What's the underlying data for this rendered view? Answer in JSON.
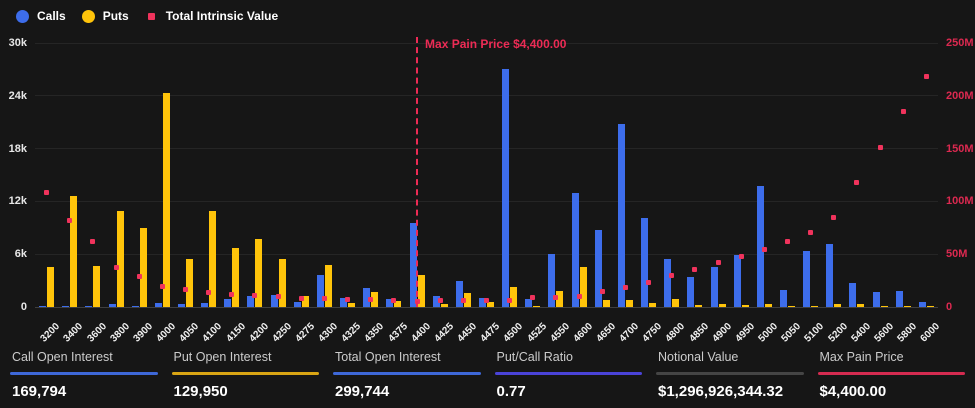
{
  "legend": [
    {
      "label": "Calls",
      "shape": "circle",
      "color": "#3D6DEB"
    },
    {
      "label": "Puts",
      "shape": "circle",
      "color": "#FFC40A"
    },
    {
      "label": "Total Intrinsic Value",
      "shape": "square",
      "color": "#F0335C"
    }
  ],
  "chart_data": {
    "type": "bar",
    "categories": [
      "3200",
      "3400",
      "3600",
      "3800",
      "3900",
      "4000",
      "4050",
      "4100",
      "4150",
      "4200",
      "4250",
      "4275",
      "4300",
      "4325",
      "4350",
      "4375",
      "4400",
      "4425",
      "4450",
      "4475",
      "4500",
      "4525",
      "4550",
      "4600",
      "4650",
      "4700",
      "4750",
      "4800",
      "4850",
      "4900",
      "4950",
      "5000",
      "5050",
      "5100",
      "5200",
      "5400",
      "5600",
      "5800",
      "6000"
    ],
    "series": [
      {
        "name": "Calls",
        "type": "bar",
        "axis": "left",
        "color": "#3D6DEB",
        "values": [
          60,
          100,
          100,
          300,
          150,
          500,
          300,
          400,
          900,
          1200,
          1400,
          600,
          3600,
          1000,
          2200,
          900,
          9500,
          1200,
          3000,
          1000,
          27000,
          900,
          6000,
          12900,
          8800,
          20800,
          10100,
          5500,
          3400,
          4500,
          5900,
          13800,
          1900,
          6400,
          7200,
          2700,
          1700,
          1800,
          600
        ]
      },
      {
        "name": "Puts",
        "type": "bar",
        "axis": "left",
        "color": "#FFC40A",
        "values": [
          4500,
          12600,
          4700,
          10900,
          9000,
          24300,
          5400,
          10900,
          6700,
          7700,
          5400,
          1200,
          4800,
          400,
          1700,
          700,
          3600,
          300,
          1600,
          600,
          2300,
          150,
          1850,
          4600,
          800,
          800,
          400,
          900,
          200,
          300,
          250,
          300,
          100,
          150,
          350,
          300,
          100,
          80,
          50
        ]
      },
      {
        "name": "Total Intrinsic Value",
        "type": "scatter",
        "axis": "right",
        "unit": "M",
        "color": "#F0335C",
        "values": [
          108,
          82,
          62,
          37,
          29,
          19.5,
          16.8,
          13.5,
          12,
          11,
          9.5,
          8.5,
          8,
          7.5,
          7,
          6.5,
          5.5,
          6,
          6.3,
          6.5,
          6.6,
          8.8,
          9,
          10,
          14.5,
          18.7,
          23.4,
          29.4,
          35.7,
          42,
          47.6,
          54.6,
          62.5,
          70.4,
          84.6,
          117.7,
          150.9,
          185.6,
          218
        ]
      }
    ],
    "left_axis": {
      "ticks": [
        "0",
        "6k",
        "12k",
        "18k",
        "24k",
        "30k"
      ],
      "max": 30000
    },
    "right_axis": {
      "ticks": [
        "0",
        "50M",
        "100M",
        "150M",
        "200M",
        "250M"
      ],
      "max": 250
    },
    "annotation": {
      "label": "Max Pain Price $4,400.00",
      "category": "4400",
      "color": "#ED2B55"
    },
    "grid": true,
    "legend_position": "top-left"
  },
  "footer": {
    "stats": [
      {
        "label": "Call Open Interest",
        "value": "169,794",
        "accent": "#3E68D8"
      },
      {
        "label": "Put Open Interest",
        "value": "129,950",
        "accent": "#D9A514"
      },
      {
        "label": "Total Open Interest",
        "value": "299,744",
        "accent": "#3E68D8"
      },
      {
        "label": "Put/Call Ratio",
        "value": "0.77",
        "accent": "#4A43D8"
      },
      {
        "label": "Notional Value",
        "value": "$1,296,926,344.32",
        "accent": "#454545"
      },
      {
        "label": "Max Pain Price",
        "value": "$4,400.00",
        "accent": "#D42B50"
      }
    ]
  }
}
